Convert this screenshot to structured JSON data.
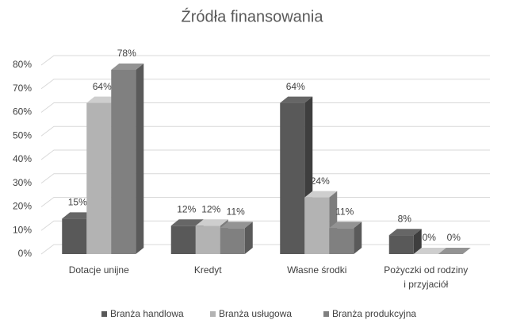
{
  "chart_data": {
    "type": "bar3d",
    "title": "Źródła finansowania",
    "categories": [
      "Dotacje unijne",
      "Kredyt",
      "Własne środki",
      "Pożyczki od rodziny\ni  przyjaciół"
    ],
    "series": [
      {
        "name": "Branża handlowa",
        "color": "#595959",
        "values": [
          15,
          12,
          64,
          8
        ],
        "value_labels": [
          "15%",
          "12%",
          "64%",
          "8%"
        ]
      },
      {
        "name": "Branża usługowa",
        "color": "#b3b3b3",
        "values": [
          64,
          12,
          24,
          0
        ],
        "value_labels": [
          "64%",
          "12%",
          "24%",
          "0%"
        ]
      },
      {
        "name": "Branża produkcyjna",
        "color": "#808080",
        "values": [
          78,
          11,
          11,
          0
        ],
        "value_labels": [
          "78%",
          "11%",
          "11%",
          "0%"
        ]
      }
    ],
    "ylim": [
      0,
      80
    ],
    "yticks": [
      {
        "value": 0,
        "label": "0%"
      },
      {
        "value": 10,
        "label": "10%"
      },
      {
        "value": 20,
        "label": "20%"
      },
      {
        "value": 30,
        "label": "30%"
      },
      {
        "value": 40,
        "label": "40%"
      },
      {
        "value": 50,
        "label": "50%"
      },
      {
        "value": 60,
        "label": "60%"
      },
      {
        "value": 70,
        "label": "70%"
      },
      {
        "value": 80,
        "label": "80%"
      }
    ],
    "grid": true,
    "legend": "bottom"
  }
}
